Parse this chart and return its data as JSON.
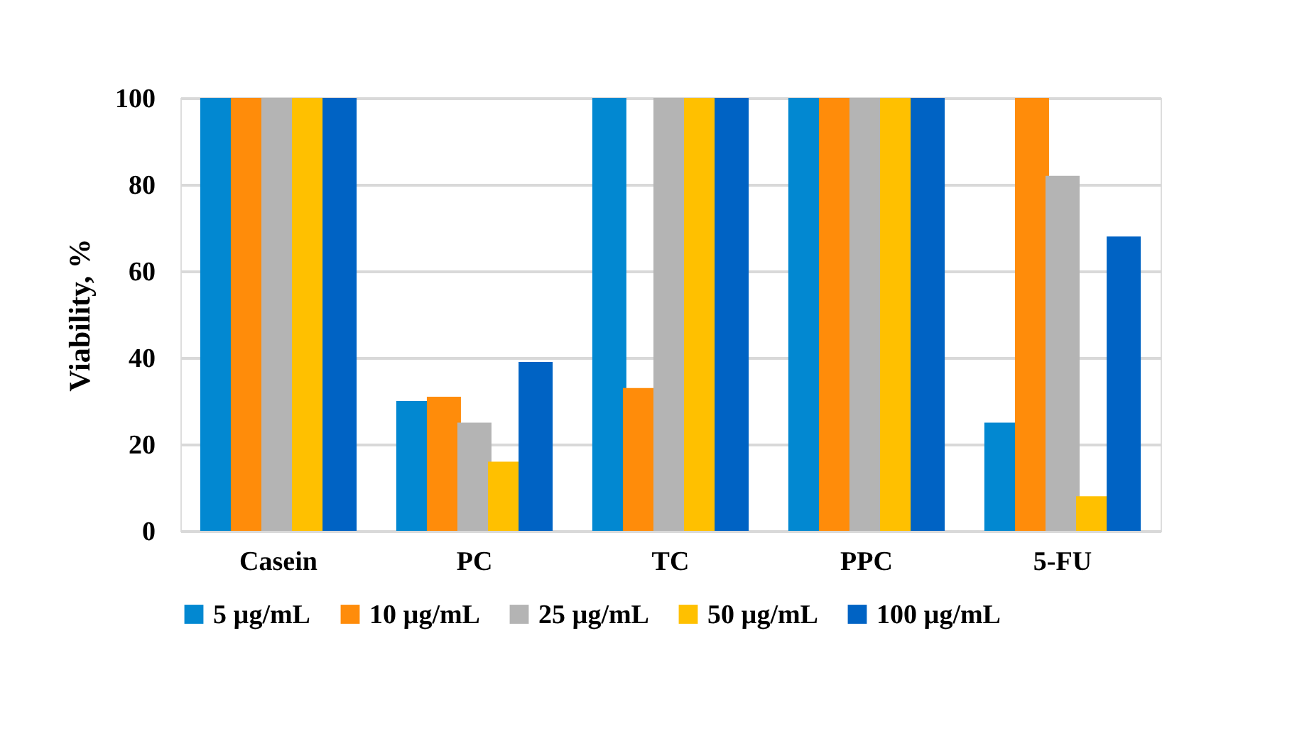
{
  "chart_data": {
    "type": "bar",
    "ylabel": "Viability, %",
    "categories": [
      "Casein",
      "PC",
      "TC",
      "PPC",
      "5-FU"
    ],
    "ylim": [
      0,
      100
    ],
    "yticks": [
      0,
      20,
      40,
      60,
      80,
      100
    ],
    "grid": "y",
    "legend": "bottom",
    "series": [
      {
        "name": "5 µg/mL",
        "color": "#0288d1",
        "values": [
          100,
          30,
          100,
          100,
          25
        ]
      },
      {
        "name": "10 µg/mL",
        "color": "#ff8c0a",
        "values": [
          100,
          31,
          33,
          100,
          100
        ]
      },
      {
        "name": "25 µg/mL",
        "color": "#b4b4b4",
        "values": [
          100,
          25,
          100,
          100,
          82
        ]
      },
      {
        "name": "50 µg/mL",
        "color": "#ffc000",
        "values": [
          100,
          16,
          100,
          100,
          8
        ]
      },
      {
        "name": "100 µg/mL",
        "color": "#0063c4",
        "values": [
          100,
          39,
          100,
          100,
          68
        ]
      }
    ]
  }
}
